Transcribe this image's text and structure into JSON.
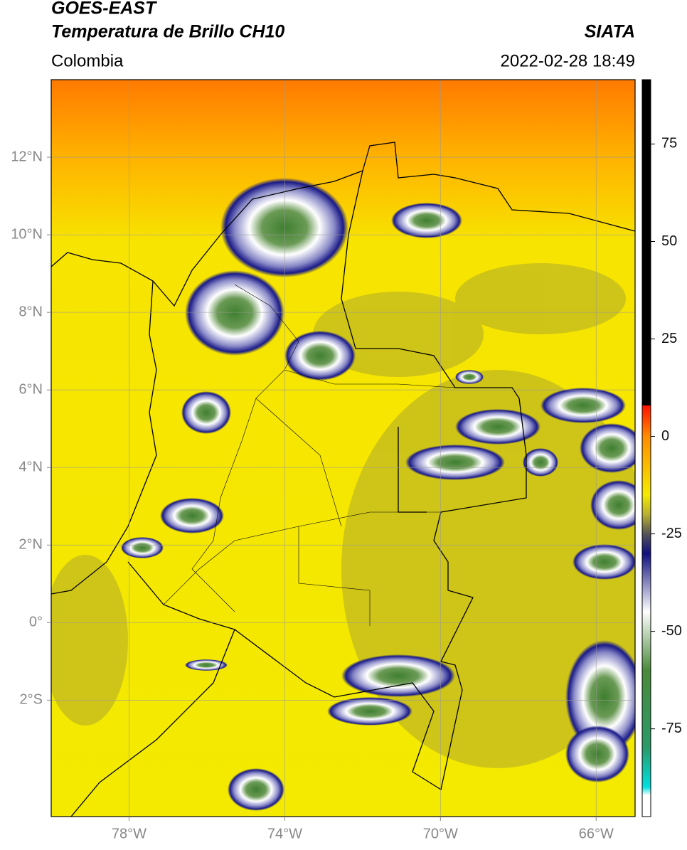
{
  "header": {
    "satellite": "GOES-EAST",
    "product": "Temperatura de Brillo CH10",
    "source": "SIATA",
    "region": "Colombia",
    "datetime": "2022-02-28 18:49"
  },
  "map": {
    "xlim": [
      -80,
      -65
    ],
    "ylim": [
      -5,
      14
    ],
    "xticks": [
      {
        "value": -78,
        "label": "78°W"
      },
      {
        "value": -74,
        "label": "74°W"
      },
      {
        "value": -70,
        "label": "70°W"
      },
      {
        "value": -66,
        "label": "66°W"
      }
    ],
    "yticks": [
      {
        "value": -2,
        "label": "2°S"
      },
      {
        "value": 0,
        "label": "0°"
      },
      {
        "value": 2,
        "label": "2°N"
      },
      {
        "value": 4,
        "label": "4°N"
      },
      {
        "value": 6,
        "label": "6°N"
      },
      {
        "value": 8,
        "label": "8°N"
      },
      {
        "value": 10,
        "label": "10°N"
      },
      {
        "value": 12,
        "label": "12°N"
      }
    ],
    "grid": true
  },
  "colorbar": {
    "lim": [
      -97.5,
      91.5
    ],
    "ticks": [
      -75,
      -50,
      -25,
      0,
      25,
      50,
      75
    ]
  }
}
